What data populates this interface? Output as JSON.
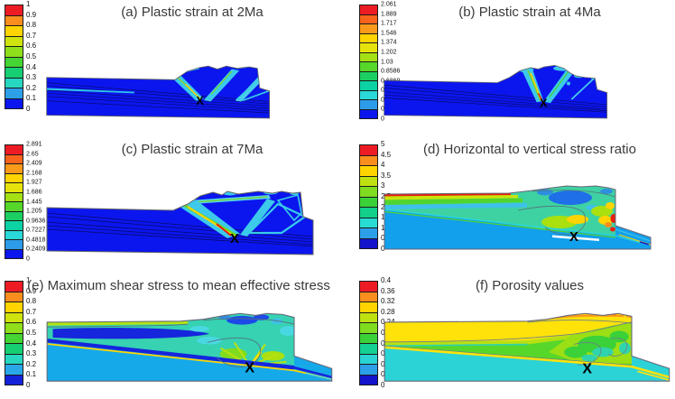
{
  "figure": {
    "background": "#ffffff",
    "marker_label": "X",
    "layout": "2x3 grid of contour plots, each with discrete rainbow colorbar at left"
  },
  "panels": [
    {
      "id": "a",
      "title": "(a) Plastic strain at 2Ma",
      "colorbar": {
        "ticks": [
          "1",
          "0.9",
          "0.8",
          "0.7",
          "0.6",
          "0.5",
          "0.4",
          "0.3",
          "0.2",
          "0.1",
          "0"
        ],
        "colors": [
          "#ed1c24",
          "#f98e1e",
          "#ffd400",
          "#cfe30e",
          "#8fdf1b",
          "#45d433",
          "#16cf72",
          "#27d7c0",
          "#2da0e8",
          "#0b16ee"
        ]
      }
    },
    {
      "id": "b",
      "title": "(b) Plastic strain at 4Ma",
      "colorbar": {
        "ticks": [
          "2.061",
          "1.889",
          "1.717",
          "1.546",
          "1.374",
          "1.202",
          "1.03",
          "0.8586",
          "0.6869",
          "0.5151",
          "0.3434",
          "0.1717",
          "0"
        ],
        "colors": [
          "#ed1c24",
          "#f8641c",
          "#fa9a1a",
          "#ffd400",
          "#e6e30c",
          "#a4e014",
          "#56d72a",
          "#1ccf62",
          "#0cd2a4",
          "#2ad8d8",
          "#2d9ce8",
          "#0b16ee"
        ]
      }
    },
    {
      "id": "c",
      "title": "(c) Plastic strain at 7Ma",
      "colorbar": {
        "ticks": [
          "2.891",
          "2.65",
          "2.409",
          "2.168",
          "1.927",
          "1.686",
          "1.445",
          "1.205",
          "0.9636",
          "0.7227",
          "0.4818",
          "0.2409",
          "0"
        ],
        "colors": [
          "#ed1c24",
          "#f8641c",
          "#fa9a1a",
          "#ffd400",
          "#e6e30c",
          "#a4e014",
          "#56d72a",
          "#1ccf62",
          "#0cd2a4",
          "#2ad8d8",
          "#2d9ce8",
          "#0b16ee"
        ]
      }
    },
    {
      "id": "d",
      "title": "(d) Horizontal to vertical stress ratio",
      "colorbar": {
        "ticks": [
          "5",
          "4.5",
          "4",
          "3.5",
          "3",
          "2.5",
          "2",
          "1.5",
          "1",
          "0.5",
          "0"
        ],
        "colors": [
          "#ed1c24",
          "#f98e1e",
          "#ffd400",
          "#bfe112",
          "#7fdc1f",
          "#3bd139",
          "#12cf8a",
          "#28dcd4",
          "#2d9fe8",
          "#1313cc"
        ]
      }
    },
    {
      "id": "e",
      "title": "(e) Maximum shear stress to mean effective stress",
      "colorbar": {
        "ticks": [
          "1",
          "0.9",
          "0.8",
          "0.7",
          "0.6",
          "0.5",
          "0.4",
          "0.3",
          "0.2",
          "0.1",
          "0"
        ],
        "colors": [
          "#ed1c24",
          "#f98e1e",
          "#ffd400",
          "#cfe30e",
          "#8fdf1b",
          "#45d433",
          "#16cf72",
          "#27d7c0",
          "#2aa7e8",
          "#1322d8"
        ]
      }
    },
    {
      "id": "f",
      "title": "(f) Porosity values",
      "colorbar": {
        "ticks": [
          "0.4",
          "0.36",
          "0.32",
          "0.28",
          "0.24",
          "0.2",
          "0.16",
          "0.12",
          "0.08",
          "0.04",
          "0"
        ],
        "colors": [
          "#ed1c24",
          "#f98e1e",
          "#ffd400",
          "#bfe112",
          "#7fdc1f",
          "#3bd139",
          "#15d093",
          "#2ad4d4",
          "#2d9fe8",
          "#1313cc"
        ]
      }
    }
  ],
  "chart_data": [
    {
      "type": "heatmap",
      "panel": "a",
      "title": "(a) Plastic strain at 2Ma",
      "quantity": "plastic strain",
      "colorbar_range": [
        0,
        1
      ],
      "colorbar_ticks": [
        1,
        0.9,
        0.8,
        0.7,
        0.6,
        0.5,
        0.4,
        0.3,
        0.2,
        0.1,
        0
      ],
      "notes": "Wedge cross-section, mostly 0-0.1 (blue); conjugate V-shaped shear bands (0.2-0.7) converge at X marker near base of frontal mound; thin bedding lines dip gently right."
    },
    {
      "type": "heatmap",
      "panel": "b",
      "title": "(b) Plastic strain at 4Ma",
      "quantity": "plastic strain",
      "colorbar_range": [
        0,
        2.061
      ],
      "colorbar_ticks": [
        2.061,
        1.889,
        1.717,
        1.546,
        1.374,
        1.202,
        1.03,
        0.8586,
        0.6869,
        0.5151,
        0.3434,
        0.1717,
        0
      ],
      "notes": "Higher mound; steep left shear band with yellow-red core (up to ~2) reaching X marker; right band cyan-green; blue background 0-0.17."
    },
    {
      "type": "heatmap",
      "panel": "c",
      "title": "(c) Plastic strain at 7Ma",
      "quantity": "plastic strain",
      "colorbar_range": [
        0,
        2.891
      ],
      "colorbar_ticks": [
        2.891,
        2.65,
        2.409,
        2.168,
        1.927,
        1.686,
        1.445,
        1.205,
        0.9636,
        0.7227,
        0.4818,
        0.2409,
        0
      ],
      "notes": "Mature wedge; main inclined band with red core (~2.9) ending at X marker; cyan band loops outline back-thrust blocks to the right."
    },
    {
      "type": "heatmap",
      "panel": "d",
      "title": "(d) Horizontal to vertical stress ratio",
      "quantity": "horizontal/vertical stress ratio",
      "colorbar_range": [
        0,
        5
      ],
      "colorbar_ticks": [
        5,
        4.5,
        4,
        3.5,
        3,
        2.5,
        2,
        1.5,
        1,
        0.5,
        0
      ],
      "notes": "Lower plate uniform ~0.5-1 (blue); upper wedge 1.5-2.5 (teal-green) with red stripe ~5 at shallow left surface, yellow patches 3-4 near X, red spots at right edge, white gap below X."
    },
    {
      "type": "heatmap",
      "panel": "e",
      "title": "(e) Maximum shear stress to mean effective stress",
      "quantity": "max shear stress / mean effective stress",
      "colorbar_range": [
        0,
        1
      ],
      "colorbar_ticks": [
        1,
        0.9,
        0.8,
        0.7,
        0.6,
        0.5,
        0.4,
        0.3,
        0.2,
        0.1,
        0
      ],
      "notes": "Lower plate ~0.1-0.2; wedge ~0.3-0.4 with 0-0.1 dark-blue lens at upper left and crest, yellow-green streaks 0.6-0.8 radiating from X; dark-blue decollement band with yellow stripe beneath."
    },
    {
      "type": "heatmap",
      "panel": "f",
      "title": "(f) Porosity values",
      "quantity": "porosity",
      "colorbar_range": [
        0,
        0.4
      ],
      "colorbar_ticks": [
        0.4,
        0.36,
        0.32,
        0.28,
        0.24,
        0.2,
        0.16,
        0.12,
        0.08,
        0.04,
        0
      ],
      "notes": "Yellow surface layer ~0.28-0.32 with orange ~0.36 at crest; porosity decreases downward through green ~0.2 to cyan ~0.08-0.12 lower plate; yellow stripe along decollement; X marker at wedge base."
    }
  ]
}
